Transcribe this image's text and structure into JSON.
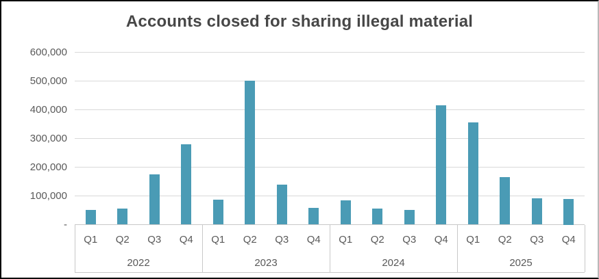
{
  "colors": {
    "bar": "#4A9BB5",
    "gridline": "#D9D9D9",
    "axis": "#C8C8C8",
    "label_text": "#595959",
    "title_text": "#474747",
    "frame": "#000000"
  },
  "chart_data": {
    "type": "bar",
    "title": "Accounts closed for sharing illegal material",
    "xlabel": "",
    "ylabel": "",
    "legend": false,
    "grid": true,
    "categories_level1": [
      "Q1",
      "Q2",
      "Q3",
      "Q4",
      "Q1",
      "Q2",
      "Q3",
      "Q4",
      "Q1",
      "Q2",
      "Q3",
      "Q4",
      "Q1",
      "Q2",
      "Q3",
      "Q4"
    ],
    "categories_level2": [
      "2022",
      "2023",
      "2024",
      "2025"
    ],
    "groups": [
      {
        "year": "2022",
        "quarters": [
          "Q1",
          "Q2",
          "Q3",
          "Q4"
        ],
        "values": [
          50000,
          56000,
          174000,
          280000
        ]
      },
      {
        "year": "2023",
        "quarters": [
          "Q1",
          "Q2",
          "Q3",
          "Q4"
        ],
        "values": [
          87000,
          500000,
          140000,
          59000
        ]
      },
      {
        "year": "2024",
        "quarters": [
          "Q1",
          "Q2",
          "Q3",
          "Q4"
        ],
        "values": [
          84000,
          56000,
          50000,
          414000
        ]
      },
      {
        "year": "2025",
        "quarters": [
          "Q1",
          "Q2",
          "Q3",
          "Q4"
        ],
        "values": [
          356000,
          166000,
          92000,
          90000
        ]
      }
    ],
    "y_axis": {
      "min": 0,
      "max": 600000,
      "tick_values": [
        600000,
        500000,
        400000,
        300000,
        200000,
        100000,
        0
      ],
      "tick_labels": [
        "600,000",
        "500,000",
        "400,000",
        "300,000",
        "200,000",
        "100,000",
        "-"
      ]
    }
  }
}
